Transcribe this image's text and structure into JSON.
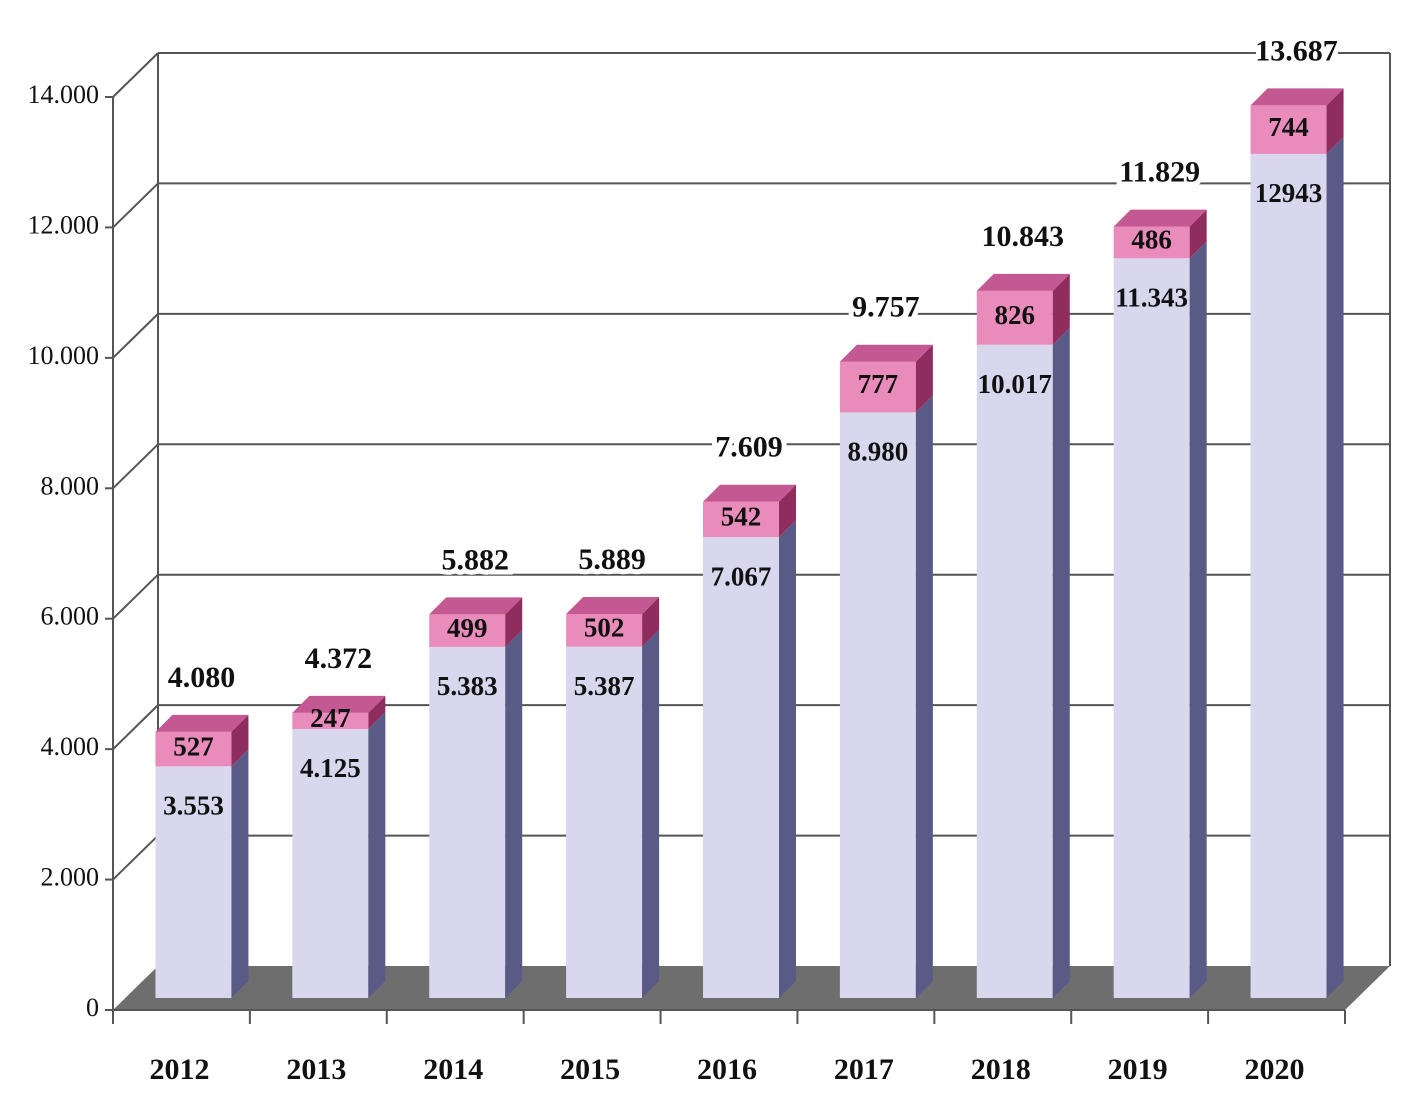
{
  "chart_data": {
    "type": "bar3d_stacked",
    "categories": [
      "2012",
      "2013",
      "2014",
      "2015",
      "2016",
      "2017",
      "2018",
      "2019",
      "2020"
    ],
    "series": [
      {
        "color": "#d9d7ee",
        "values": [
          3553,
          4125,
          5383,
          5387,
          7067,
          8980,
          10017,
          11343,
          12943
        ],
        "value_labels": [
          "3.553",
          "4.125",
          "5.383",
          "5.387",
          "7.067",
          "8.980",
          "10.017",
          "11.343",
          "12943"
        ]
      },
      {
        "color": "#ea8cbb",
        "values": [
          527,
          247,
          499,
          502,
          542,
          777,
          826,
          486,
          744
        ]
      }
    ],
    "totals": {
      "values": [
        4080,
        4372,
        5882,
        5889,
        7609,
        9757,
        10843,
        11829,
        13687
      ],
      "value_labels": [
        "4.080",
        "4.372",
        "5.882",
        "5.889",
        "7.609",
        "9.757",
        "10.843",
        "11.829",
        "13.687"
      ]
    },
    "ylim": [
      0,
      14000
    ],
    "yticks": [
      0,
      {
        "value": 2000,
        "label": "2.000"
      },
      {
        "value": 4000,
        "label": "4.000"
      },
      {
        "value": 6000,
        "label": "6.000"
      },
      {
        "value": 8000,
        "label": "8.000"
      },
      {
        "value": 10000,
        "label": "10.000"
      },
      {
        "value": 12000,
        "label": "12.000"
      },
      {
        "value": 14000,
        "label": "14.000"
      }
    ],
    "grid": true
  }
}
